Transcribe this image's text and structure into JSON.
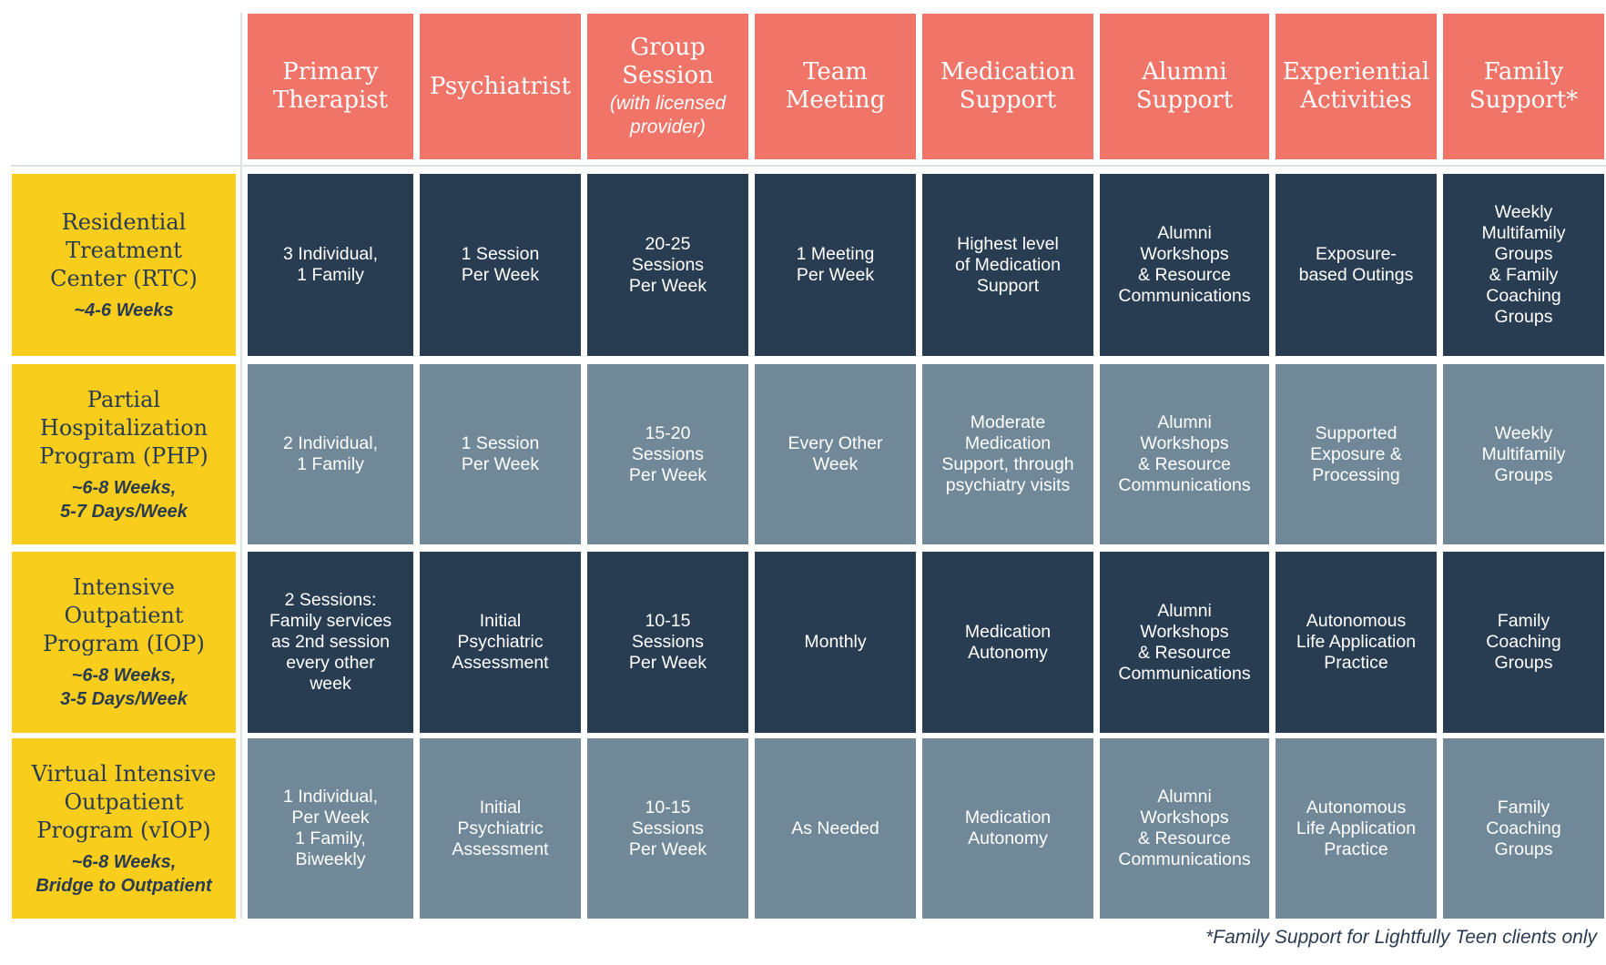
{
  "columns": [
    {
      "title": "Primary\nTherapist"
    },
    {
      "title": "Psychiatrist"
    },
    {
      "title": "Group\nSession",
      "subtitle": "(with licensed\nprovider)"
    },
    {
      "title": "Team\nMeeting"
    },
    {
      "title": "Medication\nSupport"
    },
    {
      "title": "Alumni\nSupport"
    },
    {
      "title": "Experiential\nActivities"
    },
    {
      "title": "Family\nSupport*"
    }
  ],
  "rows": [
    {
      "name": "Residential\nTreatment\nCenter (RTC)",
      "duration": "~4-6 Weeks",
      "cells": [
        "3 Individual,\n1 Family",
        "1 Session\nPer Week",
        "20-25\nSessions\nPer Week",
        "1 Meeting\nPer Week",
        "Highest level\nof Medication\nSupport",
        "Alumni\nWorkshops\n& Resource\nCommunications",
        "Exposure-\nbased Outings",
        "Weekly\nMultifamily\nGroups\n& Family\nCoaching\nGroups"
      ]
    },
    {
      "name": "Partial\nHospitalization\nProgram (PHP)",
      "duration": "~6-8 Weeks,\n5-7 Days/Week",
      "cells": [
        "2 Individual,\n1 Family",
        "1 Session\nPer Week",
        "15-20\nSessions\nPer Week",
        "Every Other\nWeek",
        "Moderate\nMedication\nSupport, through\npsychiatry visits",
        "Alumni\nWorkshops\n& Resource\nCommunications",
        "Supported\nExposure &\nProcessing",
        "Weekly\nMultifamily\nGroups"
      ]
    },
    {
      "name": "Intensive\nOutpatient\nProgram (IOP)",
      "duration": "~6-8 Weeks,\n3-5 Days/Week",
      "cells": [
        "2 Sessions:\nFamily services\nas 2nd session\nevery other\nweek",
        "Initial\nPsychiatric\nAssessment",
        "10-15\nSessions\nPer Week",
        "Monthly",
        "Medication\nAutonomy",
        "Alumni\nWorkshops\n& Resource\nCommunications",
        "Autonomous\nLife Application\nPractice",
        "Family\nCoaching\nGroups"
      ]
    },
    {
      "name": "Virtual Intensive\nOutpatient\nProgram (vIOP)",
      "duration": "~6-8 Weeks,\nBridge to Outpatient",
      "cells": [
        "1 Individual,\nPer Week\n1 Family,\nBiweekly",
        "Initial\nPsychiatric\nAssessment",
        "10-15\nSessions\nPer Week",
        "As Needed",
        "Medication\nAutonomy",
        "Alumni\nWorkshops\n& Resource\nCommunications",
        "Autonomous\nLife Application\nPractice",
        "Family\nCoaching\nGroups"
      ]
    }
  ],
  "footnote": "*Family Support for Lightfully Teen clients only",
  "colors": {
    "header": "#f07468",
    "row_label": "#f8cd1c",
    "dark_cell": "#293d52",
    "light_cell": "#708897",
    "text_dark": "#2a3b50"
  }
}
